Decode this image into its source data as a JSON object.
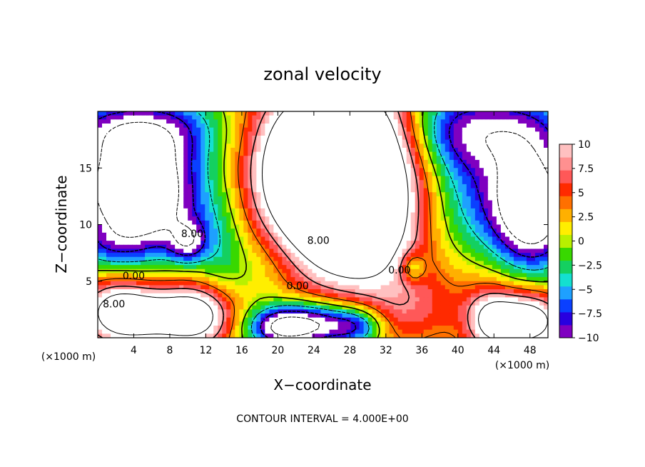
{
  "chart_data": {
    "type": "heatmap",
    "title": "zonal velocity",
    "xlabel": "X−coordinate",
    "ylabel": "Z−coordinate",
    "x_unit": "(×1000 m)",
    "y_unit": "(×1000 m)",
    "xlim": [
      0,
      50
    ],
    "ylim": [
      0,
      20
    ],
    "x_ticks": [
      4,
      8,
      12,
      16,
      20,
      24,
      28,
      32,
      36,
      40,
      44,
      48
    ],
    "x_tick_labels": [
      "4",
      "8",
      "12",
      "16",
      "20",
      "24",
      "28",
      "32",
      "36",
      "40",
      "44",
      "48"
    ],
    "y_ticks": [
      5,
      10,
      15
    ],
    "y_tick_labels": [
      "5",
      "10",
      "15"
    ],
    "colorbar": {
      "min": -10,
      "max": 10,
      "ticks": [
        10,
        7.5,
        5,
        2.5,
        0,
        -2.5,
        -5,
        -7.5,
        -10
      ],
      "tick_labels": [
        "10",
        "7.5",
        "5",
        "2.5",
        "0",
        "−2.5",
        "−5",
        "−7.5",
        "−10"
      ],
      "colors": [
        "#7f00c0",
        "#2800e0",
        "#0a40ff",
        "#1ea0ff",
        "#14e0d0",
        "#14d060",
        "#38d800",
        "#b8f000",
        "#ffee00",
        "#ffb000",
        "#ff7000",
        "#ff2a00",
        "#ff5858",
        "#ff9090",
        "#ffc0c0"
      ]
    },
    "contour_interval_text": "CONTOUR INTERVAL = 4.000E+00",
    "contour_labels": [
      {
        "text": "8.00",
        "x": 10.5,
        "z": 9.2
      },
      {
        "text": "8.00",
        "x": 24.5,
        "z": 8.6
      },
      {
        "text": "0.00",
        "x": 33.5,
        "z": 6.0
      },
      {
        "text": "0.00",
        "x": 4.0,
        "z": 5.5
      },
      {
        "text": "0.00",
        "x": 22.2,
        "z": 4.6
      },
      {
        "text": "8.00",
        "x": 1.8,
        "z": 3.0
      }
    ],
    "field_features": [
      {
        "x": 26.5,
        "z": 13.5,
        "sx": 5.5,
        "sz": 5.5,
        "v": 16
      },
      {
        "x": 27.0,
        "z": 11.0,
        "sx": 6.0,
        "sz": 5.0,
        "v": 6
      },
      {
        "x": 27.5,
        "z": 18.5,
        "sx": 5.0,
        "sz": 3.0,
        "v": 7
      },
      {
        "x": 22.0,
        "z": 15.0,
        "sx": 4.0,
        "sz": 4.5,
        "v": 6
      },
      {
        "x": 30.5,
        "z": 12.0,
        "sx": 3.5,
        "sz": 6.0,
        "v": 5
      },
      {
        "x": 35.0,
        "z": 14.0,
        "sx": 2.5,
        "sz": 6.0,
        "v": 1
      },
      {
        "x": 3.5,
        "z": 13.5,
        "sx": 4.0,
        "sz": 3.0,
        "v": -15
      },
      {
        "x": 6.0,
        "z": 11.0,
        "sx": 5.0,
        "sz": 3.5,
        "v": -9
      },
      {
        "x": 10.0,
        "z": 8.5,
        "sx": 1.5,
        "sz": 1.3,
        "v": -8
      },
      {
        "x": 3.0,
        "z": 18.5,
        "sx": 6.0,
        "sz": 2.0,
        "v": -9
      },
      {
        "x": 9.0,
        "z": 17.5,
        "sx": 4.0,
        "sz": 3.0,
        "v": -4
      },
      {
        "x": 1.0,
        "z": 8.0,
        "sx": 3.0,
        "sz": 1.5,
        "v": -4
      },
      {
        "x": 48.5,
        "z": 11.0,
        "sx": 3.0,
        "sz": 3.5,
        "v": -15
      },
      {
        "x": 45.0,
        "z": 13.5,
        "sx": 4.5,
        "sz": 4.0,
        "v": -7
      },
      {
        "x": 44.0,
        "z": 18.5,
        "sx": 7.0,
        "sz": 2.5,
        "v": -9
      },
      {
        "x": 38.5,
        "z": 17.5,
        "sx": 3.0,
        "sz": 4.0,
        "v": -3
      },
      {
        "x": 40.5,
        "z": 10.5,
        "sx": 3.5,
        "sz": 3.5,
        "v": -2
      },
      {
        "x": 24.0,
        "z": 1.2,
        "sx": 4.0,
        "sz": 1.4,
        "v": -14
      },
      {
        "x": 20.0,
        "z": 0.8,
        "sx": 2.5,
        "sz": 1.2,
        "v": -8
      },
      {
        "x": 29.0,
        "z": 1.0,
        "sx": 2.0,
        "sz": 1.2,
        "v": -6
      },
      {
        "x": 18.5,
        "z": 6.5,
        "sx": 3.5,
        "sz": 3.0,
        "v": -3.5
      },
      {
        "x": 13.5,
        "z": 8.0,
        "sx": 2.0,
        "sz": 4.0,
        "v": -3
      },
      {
        "x": 35.0,
        "z": 6.2,
        "sx": 0.9,
        "sz": 0.9,
        "v": -6
      },
      {
        "x": 6.5,
        "z": 2.0,
        "sx": 5.0,
        "sz": 2.0,
        "v": 13
      },
      {
        "x": 2.0,
        "z": 2.5,
        "sx": 2.5,
        "sz": 2.0,
        "v": 7
      },
      {
        "x": 11.5,
        "z": 2.0,
        "sx": 2.5,
        "sz": 2.0,
        "v": 7
      },
      {
        "x": 47.5,
        "z": 1.5,
        "sx": 3.0,
        "sz": 1.8,
        "v": 15
      },
      {
        "x": 43.5,
        "z": 1.5,
        "sx": 1.8,
        "sz": 2.0,
        "v": 7
      },
      {
        "x": 38.0,
        "z": 3.0,
        "sx": 5.0,
        "sz": 2.5,
        "v": 3
      },
      {
        "x": 33.5,
        "z": 2.0,
        "sx": 2.5,
        "sz": 2.0,
        "v": 2
      }
    ]
  }
}
